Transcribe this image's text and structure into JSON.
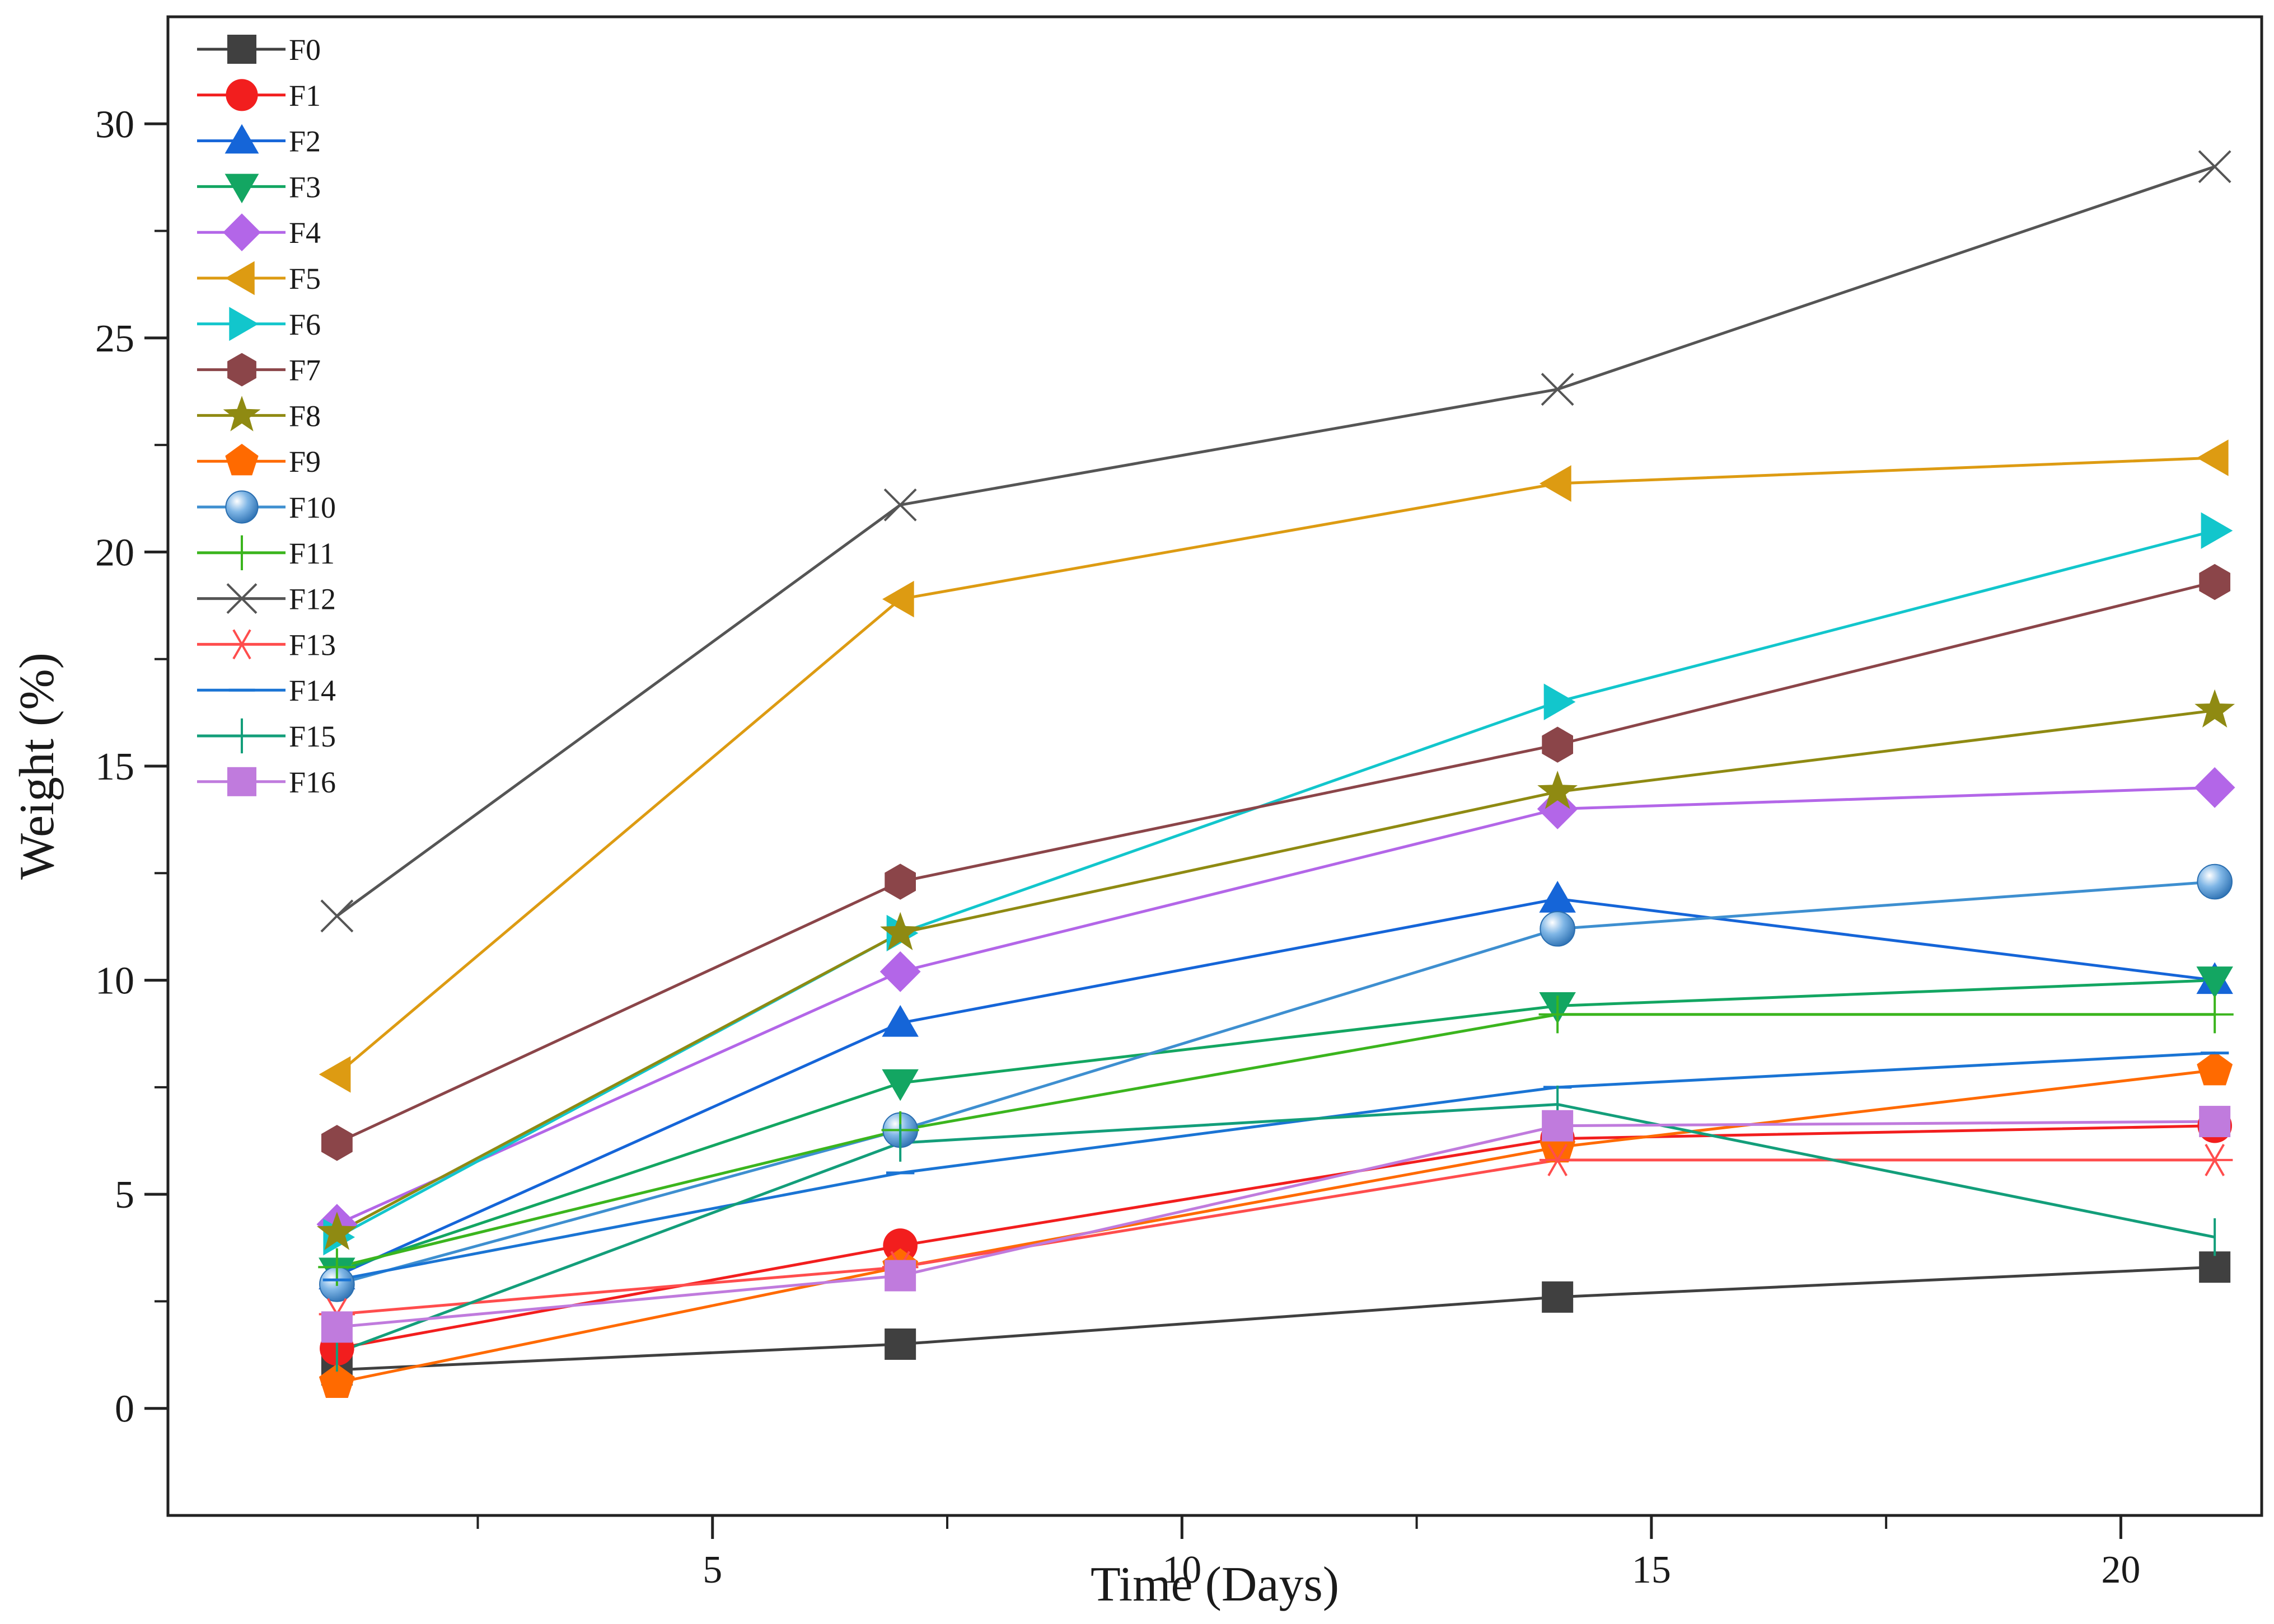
{
  "chart_data": {
    "type": "line",
    "title": "",
    "xlabel": "Time (Days)",
    "ylabel": "Weight (%)",
    "xlim": [
      -0.8,
      21.5
    ],
    "ylim": [
      -2.5,
      32.5
    ],
    "xticks": [
      5,
      10,
      15,
      20
    ],
    "yticks": [
      0,
      5,
      10,
      15,
      20,
      25,
      30
    ],
    "grid": false,
    "legend_position": "top-left",
    "x": [
      1,
      7,
      14,
      21
    ],
    "series": [
      {
        "name": "F0",
        "color": "#404040",
        "marker": "square",
        "values": [
          0.9,
          1.5,
          2.6,
          3.3
        ]
      },
      {
        "name": "F1",
        "color": "#f21e1e",
        "marker": "circle",
        "values": [
          1.4,
          3.8,
          6.3,
          6.6
        ]
      },
      {
        "name": "F2",
        "color": "#1565d8",
        "marker": "triangle-up",
        "values": [
          3.1,
          9.0,
          11.9,
          10.0
        ]
      },
      {
        "name": "F3",
        "color": "#13a662",
        "marker": "triangle-down",
        "values": [
          3.2,
          7.6,
          9.4,
          10.0
        ]
      },
      {
        "name": "F4",
        "color": "#b366e8",
        "marker": "diamond",
        "values": [
          4.3,
          10.2,
          14.0,
          14.5
        ]
      },
      {
        "name": "F5",
        "color": "#dd9b12",
        "marker": "triangle-left",
        "values": [
          7.8,
          18.9,
          21.6,
          22.2
        ]
      },
      {
        "name": "F6",
        "color": "#12c6cc",
        "marker": "triangle-right",
        "values": [
          4.0,
          11.1,
          16.5,
          20.5
        ]
      },
      {
        "name": "F7",
        "color": "#8b4549",
        "marker": "hexagon",
        "values": [
          6.2,
          12.3,
          15.5,
          19.3
        ]
      },
      {
        "name": "F8",
        "color": "#8f8a12",
        "marker": "star",
        "values": [
          4.1,
          11.1,
          14.4,
          16.3
        ]
      },
      {
        "name": "F9",
        "color": "#ff6a00",
        "marker": "pentagon",
        "values": [
          0.6,
          3.3,
          6.1,
          7.9
        ]
      },
      {
        "name": "F10",
        "color": "#3e8fd0",
        "marker": "sphere",
        "values": [
          2.9,
          6.5,
          11.2,
          12.3
        ]
      },
      {
        "name": "F11",
        "color": "#3bb51e",
        "marker": "plus",
        "values": [
          3.3,
          6.5,
          9.2,
          9.2
        ]
      },
      {
        "name": "F12",
        "color": "#555555",
        "marker": "cross",
        "values": [
          11.5,
          21.1,
          23.8,
          29.0
        ]
      },
      {
        "name": "F13",
        "color": "#ff4d4d",
        "marker": "asterisk",
        "values": [
          2.2,
          3.3,
          5.8,
          5.8
        ]
      },
      {
        "name": "F14",
        "color": "#1a74d4",
        "marker": "dash",
        "values": [
          3.0,
          5.5,
          7.5,
          8.3
        ]
      },
      {
        "name": "F15",
        "color": "#139e7a",
        "marker": "vbar",
        "values": [
          1.3,
          6.2,
          7.1,
          4.0
        ]
      },
      {
        "name": "F16",
        "color": "#c07bdd",
        "marker": "square",
        "values": [
          1.9,
          3.1,
          6.6,
          6.7
        ]
      }
    ]
  }
}
